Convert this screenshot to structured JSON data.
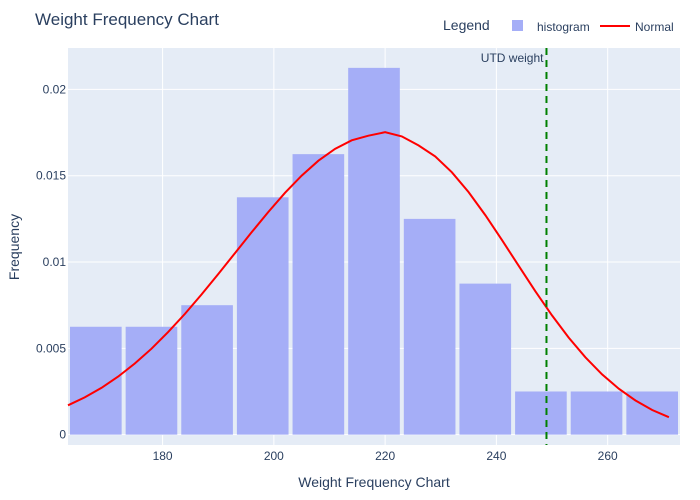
{
  "chart_data": {
    "type": "bar",
    "title": "Weight Frequency Chart",
    "xlabel": "Weight Frequency Chart",
    "ylabel": "Frequency",
    "xlim": [
      163,
      273
    ],
    "ylim": [
      -0.0006,
      0.0224
    ],
    "xticks": [
      180,
      200,
      220,
      240,
      260
    ],
    "xtick_labels": [
      "180",
      "200",
      "220",
      "240",
      "260"
    ],
    "yticks": [
      0,
      0.005,
      0.01,
      0.015,
      0.02
    ],
    "ytick_labels": [
      "0",
      "0.005",
      "0.01",
      "0.015",
      "0.02"
    ],
    "grid": true,
    "legend": {
      "title": "Legend",
      "placement": "top-right",
      "entries": [
        "histogram",
        "Normal"
      ]
    },
    "series": [
      {
        "name": "histogram",
        "type": "bar",
        "color": "#a5aef7",
        "bins": [
          {
            "x0": 163,
            "x1": 173,
            "value": 0.00625
          },
          {
            "x0": 173,
            "x1": 183,
            "value": 0.00625
          },
          {
            "x0": 183,
            "x1": 193,
            "value": 0.0075
          },
          {
            "x0": 193,
            "x1": 203,
            "value": 0.01375
          },
          {
            "x0": 203,
            "x1": 213,
            "value": 0.01625
          },
          {
            "x0": 213,
            "x1": 223,
            "value": 0.02125
          },
          {
            "x0": 223,
            "x1": 233,
            "value": 0.0125
          },
          {
            "x0": 233,
            "x1": 243,
            "value": 0.00875
          },
          {
            "x0": 243,
            "x1": 253,
            "value": 0.0025
          },
          {
            "x0": 253,
            "x1": 263,
            "value": 0.0025
          },
          {
            "x0": 263,
            "x1": 273,
            "value": 0.0025
          }
        ]
      },
      {
        "name": "Normal",
        "type": "line",
        "color": "#ff0000",
        "x": [
          163,
          166,
          169,
          172,
          175,
          178,
          181,
          184,
          187,
          190,
          193,
          196,
          199,
          202,
          205,
          208,
          211,
          214,
          217,
          220,
          223,
          226,
          229,
          232,
          235,
          238,
          241,
          244,
          247,
          250,
          253,
          256,
          259,
          262,
          265,
          268,
          271
        ],
        "y": [
          0.0017,
          0.00216,
          0.00271,
          0.00336,
          0.00412,
          0.00498,
          0.00594,
          0.00699,
          0.00812,
          0.0093,
          0.01051,
          0.01172,
          0.0129,
          0.01401,
          0.01501,
          0.01587,
          0.01656,
          0.01705,
          0.01732,
          0.01752,
          0.01728,
          0.01676,
          0.01612,
          0.0152,
          0.01405,
          0.01272,
          0.01127,
          0.00978,
          0.00831,
          0.00691,
          0.00562,
          0.00448,
          0.00349,
          0.00266,
          0.00198,
          0.00143,
          0.00101
        ]
      }
    ],
    "annotations": [
      {
        "type": "vline",
        "x": 249,
        "color": "#008000",
        "dash": "dash",
        "label": "UTD weight"
      }
    ]
  }
}
